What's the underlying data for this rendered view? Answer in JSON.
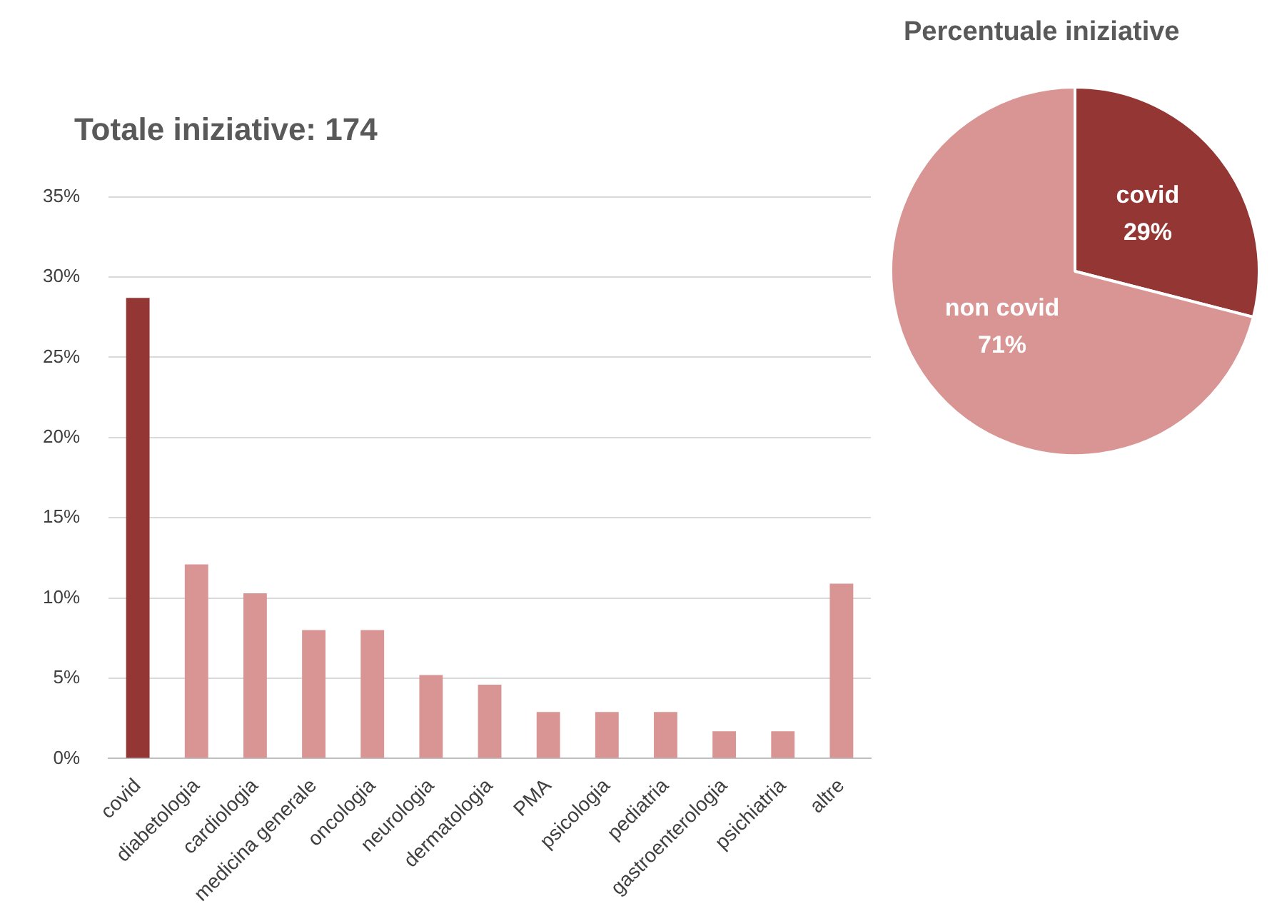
{
  "chart_data": [
    {
      "type": "bar",
      "title": "Totale iniziative: 174",
      "categories": [
        "covid",
        "diabetologia",
        "cardiologia",
        "medicina generale",
        "oncologia",
        "neurologia",
        "dermatologia",
        "PMA",
        "psicologia",
        "pediatria",
        "gastroenterologia",
        "psichiatria",
        "altre"
      ],
      "values": [
        28.7,
        12.1,
        10.3,
        8.0,
        8.0,
        5.2,
        4.6,
        2.9,
        2.9,
        2.9,
        1.7,
        1.7,
        10.9
      ],
      "colors": [
        "#943634",
        "#d99594",
        "#d99594",
        "#d99594",
        "#d99594",
        "#d99594",
        "#d99594",
        "#d99594",
        "#d99594",
        "#d99594",
        "#d99594",
        "#d99594",
        "#d99594"
      ],
      "ylim": [
        0,
        35
      ],
      "yticks": [
        {
          "value": 0,
          "label": "0%"
        },
        {
          "value": 5,
          "label": "5%"
        },
        {
          "value": 10,
          "label": "10%"
        },
        {
          "value": 15,
          "label": "15%"
        },
        {
          "value": 20,
          "label": "20%"
        },
        {
          "value": 25,
          "label": "25%"
        },
        {
          "value": 30,
          "label": "30%"
        },
        {
          "value": 35,
          "label": "35%"
        }
      ],
      "grid": "y",
      "legend": false
    },
    {
      "type": "pie",
      "title": "Percentuale iniziative",
      "categories": [
        "covid",
        "non covid"
      ],
      "values": [
        29,
        71
      ],
      "value_labels": [
        "29%",
        "71%"
      ],
      "colors": [
        "#943634",
        "#d99594"
      ],
      "legend": false
    }
  ]
}
